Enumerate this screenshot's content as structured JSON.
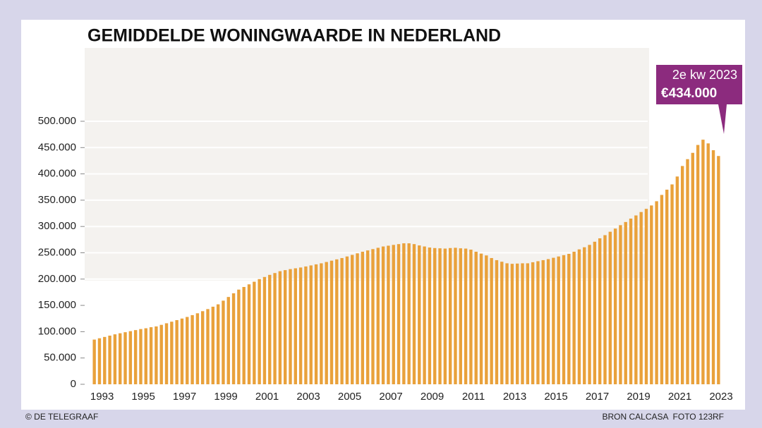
{
  "chart_data": {
    "type": "bar",
    "title": "GEMIDDELDE WONINGWAARDE IN NEDERLAND",
    "categories": [
      "1993",
      null,
      null,
      null,
      null,
      null,
      null,
      null,
      "1995",
      null,
      null,
      null,
      null,
      null,
      null,
      null,
      "1997",
      null,
      null,
      null,
      null,
      null,
      null,
      null,
      "1999",
      null,
      null,
      null,
      null,
      null,
      null,
      null,
      "2001",
      null,
      null,
      null,
      null,
      null,
      null,
      null,
      "2003",
      null,
      null,
      null,
      null,
      null,
      null,
      null,
      "2005",
      null,
      null,
      null,
      null,
      null,
      null,
      null,
      "2007",
      null,
      null,
      null,
      null,
      null,
      null,
      null,
      "2009",
      null,
      null,
      null,
      null,
      null,
      null,
      null,
      "2011",
      null,
      null,
      null,
      null,
      null,
      null,
      null,
      "2013",
      null,
      null,
      null,
      null,
      null,
      null,
      null,
      "2015",
      null,
      null,
      null,
      null,
      null,
      null,
      null,
      "2017",
      null,
      null,
      null,
      null,
      null,
      null,
      null,
      "2019",
      null,
      null,
      null,
      null,
      null,
      null,
      null,
      "2021",
      null,
      null,
      null,
      null,
      null,
      null,
      null,
      "2023",
      null
    ],
    "values": [
      85000,
      87500,
      90000,
      92500,
      95000,
      97000,
      99000,
      101000,
      103000,
      105000,
      106500,
      108500,
      110000,
      113000,
      116000,
      119000,
      122000,
      125000,
      128000,
      131500,
      135000,
      139000,
      143000,
      147500,
      152000,
      159000,
      166000,
      173000,
      180000,
      185000,
      190000,
      195000,
      200000,
      204000,
      208000,
      211500,
      215000,
      217000,
      219000,
      220500,
      222000,
      224000,
      226000,
      228000,
      230000,
      232500,
      235000,
      237500,
      240000,
      243000,
      246000,
      249000,
      252000,
      254500,
      257000,
      259500,
      262000,
      263500,
      265000,
      266500,
      268000,
      268000,
      266500,
      264000,
      262000,
      260000,
      259000,
      258500,
      258000,
      259000,
      259500,
      258500,
      258000,
      256000,
      252000,
      248500,
      245000,
      240000,
      236000,
      233000,
      230000,
      229000,
      229500,
      230000,
      230000,
      232000,
      234000,
      236000,
      238000,
      240500,
      243000,
      245500,
      248000,
      252000,
      256500,
      260500,
      265000,
      271000,
      277500,
      283500,
      290000,
      296000,
      302500,
      308500,
      315000,
      321000,
      327500,
      333500,
      340000,
      348000,
      360000,
      370000,
      380000,
      395000,
      415000,
      428000,
      440000,
      455000,
      465000,
      458000,
      445000,
      434000
    ],
    "color": "#e9a13b",
    "ylim": [
      0,
      500000
    ],
    "yticks": [
      0,
      {
        "value": 50000,
        "label": "50.000"
      },
      {
        "value": 100000,
        "label": "100.000"
      },
      {
        "value": 150000,
        "label": "150.000"
      },
      {
        "value": 200000,
        "label": "200.000"
      },
      {
        "value": 250000,
        "label": "250.000"
      },
      {
        "value": 300000,
        "label": "300.000"
      },
      {
        "value": 350000,
        "label": "350.000"
      },
      {
        "value": 400000,
        "label": "400.000"
      },
      {
        "value": 450000,
        "label": "450.000"
      },
      {
        "value": 500000,
        "label": "500.000"
      }
    ],
    "grid": true,
    "annotation": {
      "text": "2e kw 2023",
      "value_label": "€434.000"
    },
    "credit": "© DE TELEGRAAF",
    "source": "BRON CALCASA  FOTO 123RF"
  }
}
